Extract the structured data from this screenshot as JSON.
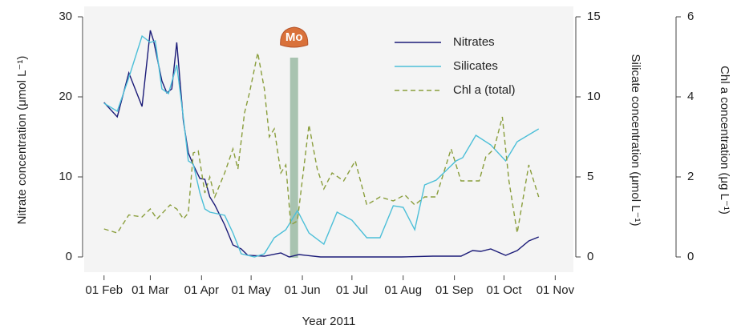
{
  "chart_data": {
    "type": "line",
    "xlabel": "Year 2011",
    "ylabel": "Nitrate concentration (μmol L⁻¹)",
    "y2label": "Silicate concentration (μmol L⁻¹)",
    "y3label": "Chl a concentration (μg L⁻¹)",
    "xlim": [
      20,
      316
    ],
    "xticks": [
      {
        "value": 32,
        "label": "01 Feb"
      },
      {
        "value": 60,
        "label": "01 Mar"
      },
      {
        "value": 91,
        "label": "01 Apr"
      },
      {
        "value": 121,
        "label": "01 May"
      },
      {
        "value": 152,
        "label": "01 Jun"
      },
      {
        "value": 182,
        "label": "01 Jul"
      },
      {
        "value": 213,
        "label": "01 Aug"
      },
      {
        "value": 244,
        "label": "01 Sep"
      },
      {
        "value": 274,
        "label": "01 Oct"
      },
      {
        "value": 305,
        "label": "01 Nov"
      }
    ],
    "ylim": [
      -1.9,
      31.3
    ],
    "yticks": [
      0,
      10,
      20,
      30
    ],
    "y2lim": [
      -0.95,
      15.65
    ],
    "y2ticks": [
      0,
      5,
      10,
      15
    ],
    "y3lim": [
      -0.38,
      6.26
    ],
    "y3ticks": [
      0,
      2,
      4,
      6
    ],
    "annotation": {
      "label": "Mo",
      "x": 147
    },
    "series": [
      {
        "name": "Nitrates",
        "color": "#1b1b78",
        "axis": "y",
        "x": [
          32,
          40,
          47,
          55,
          60,
          62,
          67,
          70,
          73,
          76,
          80,
          83,
          86,
          90,
          93,
          96,
          99,
          105,
          110,
          115,
          119,
          129,
          139,
          144,
          150,
          163,
          187,
          212,
          231,
          248,
          255,
          260,
          266,
          275,
          282,
          289,
          295
        ],
        "values": [
          19.3,
          17.5,
          23,
          18.8,
          28.3,
          27,
          22,
          20.5,
          21,
          26.8,
          17,
          13,
          11.5,
          9.8,
          9.7,
          7.5,
          6.5,
          4,
          1.5,
          1,
          0.2,
          0.1,
          0.5,
          0,
          0.3,
          0,
          0,
          0,
          0.1,
          0.1,
          0.8,
          0.7,
          1,
          0.2,
          0.8,
          2,
          2.5
        ]
      },
      {
        "name": "Silicates",
        "color": "#4cbfd8",
        "axis": "y2",
        "x": [
          32,
          40,
          47,
          55,
          60,
          63,
          67,
          71,
          76,
          80,
          83,
          86,
          90,
          93,
          96,
          105,
          110,
          115,
          123,
          129,
          135,
          142,
          149,
          156,
          165,
          173,
          182,
          191,
          199,
          207,
          213,
          220,
          226,
          233,
          245,
          249,
          257,
          266,
          275,
          282,
          295
        ],
        "values": [
          9.6,
          9.1,
          11.2,
          13.8,
          13.4,
          13.5,
          10.5,
          10.2,
          12,
          8.7,
          6,
          5.8,
          4,
          3,
          2.8,
          2.6,
          1.5,
          0.2,
          0,
          0.2,
          1.2,
          1.7,
          2.9,
          1.5,
          0.8,
          2.8,
          2.3,
          1.2,
          1.2,
          3.2,
          3.1,
          1.7,
          4.5,
          4.8,
          6,
          6.2,
          7.6,
          7,
          6,
          7.2,
          8
        ]
      },
      {
        "name": "Chl a (total)",
        "color": "#8a9e3c",
        "axis": "y3",
        "dashed": true,
        "x": [
          32,
          40,
          47,
          55,
          60,
          64,
          72,
          76,
          80,
          83,
          86,
          89,
          93,
          96,
          99,
          105,
          110,
          113,
          117,
          120,
          125,
          129,
          132,
          135,
          139,
          142,
          145,
          149,
          156,
          161,
          165,
          170,
          177,
          184,
          191,
          199,
          207,
          214,
          220,
          226,
          233,
          242,
          248,
          253,
          259,
          263,
          268,
          273,
          277,
          282,
          289,
          295
        ],
        "values": [
          0.7,
          0.6,
          1.05,
          1.0,
          1.2,
          0.95,
          1.3,
          1.2,
          0.95,
          1.1,
          2.6,
          2.65,
          1.6,
          2,
          1.5,
          2.1,
          2.7,
          2.2,
          3.6,
          4.1,
          5.1,
          4.2,
          3.0,
          3.2,
          2.1,
          2.3,
          0.8,
          0.9,
          3.3,
          2.2,
          1.7,
          2.1,
          1.9,
          2.4,
          1.3,
          1.5,
          1.4,
          1.55,
          1.3,
          1.5,
          1.5,
          2.7,
          1.9,
          1.9,
          1.9,
          2.5,
          2.7,
          3.5,
          1.9,
          0.6,
          2.3,
          1.5
        ]
      }
    ]
  }
}
